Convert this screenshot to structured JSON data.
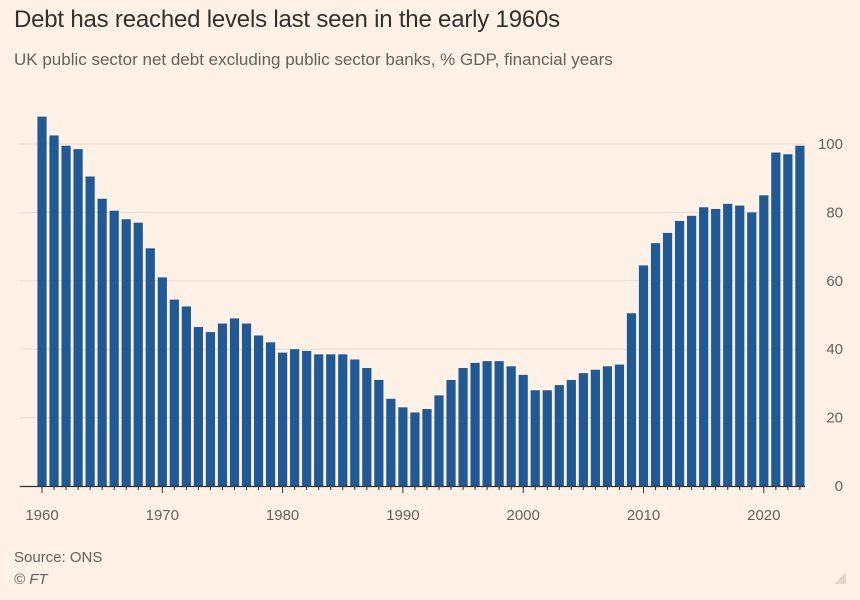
{
  "title": "Debt has reached levels last seen in the early 1960s",
  "subtitle": "UK public sector net debt excluding public sector banks, % GDP, financial years",
  "source": "Source: ONS",
  "copyright": "© FT",
  "colors": {
    "bar": "#1f5a96",
    "grid": "#e8dcd1",
    "axis": "#33302e",
    "text": "#66605c"
  },
  "chart_data": {
    "type": "bar",
    "title": "Debt has reached levels last seen in the early 1960s",
    "ylabel": "% GDP",
    "ylim": [
      0,
      100
    ],
    "yticks": [
      0,
      20,
      40,
      60,
      80,
      100
    ],
    "xticks": [
      1960,
      1970,
      1980,
      1990,
      2000,
      2010,
      2020
    ],
    "x": [
      1960,
      1961,
      1962,
      1963,
      1964,
      1965,
      1966,
      1967,
      1968,
      1969,
      1970,
      1971,
      1972,
      1973,
      1974,
      1975,
      1976,
      1977,
      1978,
      1979,
      1980,
      1981,
      1982,
      1983,
      1984,
      1985,
      1986,
      1987,
      1988,
      1989,
      1990,
      1991,
      1992,
      1993,
      1994,
      1995,
      1996,
      1997,
      1998,
      1999,
      2000,
      2001,
      2002,
      2003,
      2004,
      2005,
      2006,
      2007,
      2008,
      2009,
      2010,
      2011,
      2012,
      2013,
      2014,
      2015,
      2016,
      2017,
      2018,
      2019,
      2020,
      2021,
      2022,
      2023
    ],
    "values": [
      108,
      102.5,
      99.5,
      98.5,
      90.5,
      84,
      80.5,
      78,
      77,
      69.5,
      61,
      54.5,
      52.5,
      46.5,
      45,
      47.5,
      49,
      47.5,
      44,
      42,
      39,
      40,
      39.5,
      38.5,
      38.5,
      38.5,
      37,
      34.5,
      31,
      25.5,
      23,
      21.5,
      22.5,
      26.5,
      31,
      34.5,
      36,
      36.5,
      36.5,
      35,
      32.5,
      28,
      28,
      29.5,
      31,
      33,
      34,
      35,
      35.5,
      50.5,
      64.5,
      71,
      74,
      77.5,
      79,
      81.5,
      81,
      82.5,
      82,
      80,
      85,
      97.5,
      97,
      99.5
    ]
  }
}
